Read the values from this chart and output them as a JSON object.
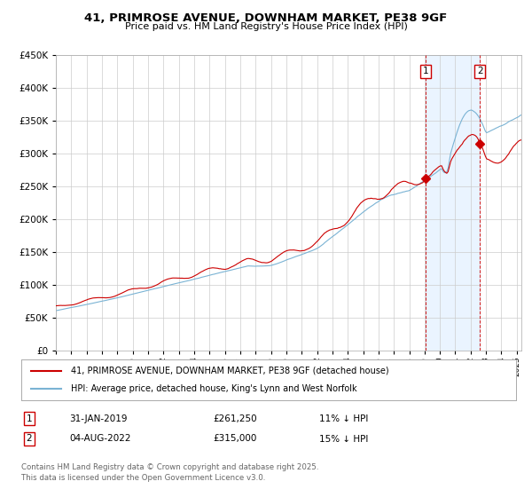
{
  "title": "41, PRIMROSE AVENUE, DOWNHAM MARKET, PE38 9GF",
  "subtitle": "Price paid vs. HM Land Registry's House Price Index (HPI)",
  "legend_line1": "41, PRIMROSE AVENUE, DOWNHAM MARKET, PE38 9GF (detached house)",
  "legend_line2": "HPI: Average price, detached house, King's Lynn and West Norfolk",
  "sale1_date": "31-JAN-2019",
  "sale1_price": "£261,250",
  "sale1_hpi": "11% ↓ HPI",
  "sale2_date": "04-AUG-2022",
  "sale2_price": "£315,000",
  "sale2_hpi": "15% ↓ HPI",
  "footer": "Contains HM Land Registry data © Crown copyright and database right 2025.\nThis data is licensed under the Open Government Licence v3.0.",
  "hpi_color": "#7ab3d4",
  "sale_color": "#cc0000",
  "vline1_x": 2019.08,
  "vline2_x": 2022.6,
  "sale1_dot_x": 2019.08,
  "sale1_dot_y": 261250,
  "sale2_dot_x": 2022.6,
  "sale2_dot_y": 315000,
  "ylim": [
    0,
    450000
  ],
  "xlim_start": 1995,
  "xlim_end": 2025.3,
  "background_color": "#ffffff",
  "grid_color": "#cccccc",
  "shade_color": "#ddeeff"
}
